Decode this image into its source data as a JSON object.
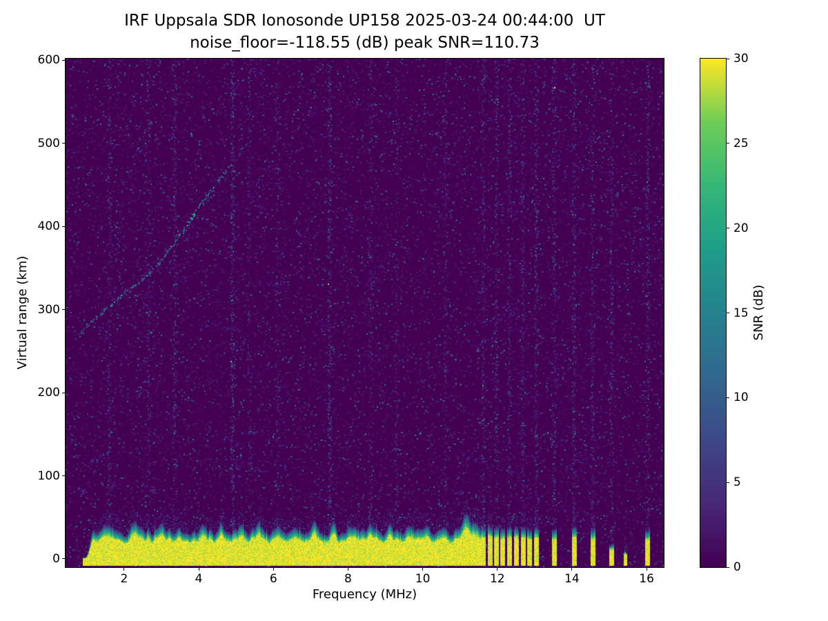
{
  "chart_data": {
    "type": "heatmap",
    "title": "IRF Uppsala SDR Ionosonde UP158 2025-03-24 00:44:00  UT",
    "subtitle": "noise_floor=-118.55 (dB) peak SNR=110.73",
    "noise_floor_db": -118.55,
    "peak_snr_db": 110.73,
    "xlabel": "Frequency (MHz)",
    "ylabel": "Virtual range (km)",
    "colorbar_label": "SNR (dB)",
    "x_ticks": [
      2,
      4,
      6,
      8,
      10,
      12,
      14,
      16
    ],
    "y_ticks": [
      0,
      100,
      200,
      300,
      400,
      500,
      600
    ],
    "colorbar_ticks": [
      0,
      5,
      10,
      15,
      20,
      25,
      30
    ],
    "xlim": [
      0.43,
      16.46
    ],
    "ylim": [
      -10,
      602
    ],
    "clim": [
      0,
      30
    ],
    "grid": false,
    "colormap": "viridis",
    "colormap_stops": [
      "#440154",
      "#482878",
      "#3e4989",
      "#31688e",
      "#26828e",
      "#1f9e89",
      "#35b779",
      "#6ece58",
      "#fde725"
    ],
    "background_snr_db": 0,
    "ground_return": {
      "f_start": 0.9,
      "ramp_end": 1.15,
      "f_end": 11.56,
      "base_top_km": 34,
      "core_fraction": 0.62,
      "bottom_km": -8,
      "jitter_km": 10,
      "bumps": [
        [
          1.55,
          10,
          0.12
        ],
        [
          2.3,
          12,
          0.12
        ],
        [
          3.0,
          10,
          0.12
        ],
        [
          3.45,
          8,
          0.09
        ],
        [
          4.1,
          10,
          0.1
        ],
        [
          4.6,
          8,
          0.08
        ],
        [
          5.1,
          7,
          0.09
        ],
        [
          5.55,
          11,
          0.09
        ],
        [
          6.1,
          7,
          0.09
        ],
        [
          6.55,
          7,
          0.08
        ],
        [
          7.1,
          12,
          0.1
        ],
        [
          7.6,
          9,
          0.08
        ],
        [
          8.1,
          7,
          0.09
        ],
        [
          8.6,
          7,
          0.08
        ],
        [
          9.1,
          9,
          0.09
        ],
        [
          9.6,
          7,
          0.08
        ],
        [
          10.1,
          7,
          0.09
        ],
        [
          10.6,
          8,
          0.08
        ],
        [
          11.15,
          24,
          0.13
        ],
        [
          11.42,
          14,
          0.08
        ]
      ]
    },
    "rf_bars": [
      {
        "f": 11.62,
        "top_km": 40,
        "width_mhz": 0.1
      },
      {
        "f": 11.8,
        "top_km": 42,
        "width_mhz": 0.1
      },
      {
        "f": 11.97,
        "top_km": 40,
        "width_mhz": 0.1
      },
      {
        "f": 12.14,
        "top_km": 38,
        "width_mhz": 0.1
      },
      {
        "f": 12.32,
        "top_km": 41,
        "width_mhz": 0.1
      },
      {
        "f": 12.5,
        "top_km": 39,
        "width_mhz": 0.1
      },
      {
        "f": 12.68,
        "top_km": 41,
        "width_mhz": 0.1
      },
      {
        "f": 12.86,
        "top_km": 38,
        "width_mhz": 0.1
      },
      {
        "f": 13.04,
        "top_km": 40,
        "width_mhz": 0.1
      },
      {
        "f": 13.52,
        "top_km": 38,
        "width_mhz": 0.12
      },
      {
        "f": 14.05,
        "top_km": 40,
        "width_mhz": 0.12
      },
      {
        "f": 14.55,
        "top_km": 38,
        "width_mhz": 0.12
      },
      {
        "f": 15.05,
        "top_km": 18,
        "width_mhz": 0.1
      },
      {
        "f": 15.42,
        "top_km": 9,
        "width_mhz": 0.08
      },
      {
        "f": 16.02,
        "top_km": 38,
        "width_mhz": 0.12
      }
    ],
    "echo_trace": {
      "points": [
        [
          0.82,
          272
        ],
        [
          1.1,
          284
        ],
        [
          1.45,
          298
        ],
        [
          1.8,
          312
        ],
        [
          2.2,
          326
        ],
        [
          2.6,
          341
        ],
        [
          3.0,
          360
        ],
        [
          3.4,
          384
        ],
        [
          3.8,
          410
        ],
        [
          4.2,
          436
        ],
        [
          4.55,
          456
        ],
        [
          4.9,
          478
        ]
      ],
      "knots": [
        [
          1.7,
          7
        ],
        [
          3.85,
          7
        ]
      ],
      "snr_min": 7,
      "snr_max": 15,
      "scatter_prob": 0.3
    },
    "noise": {
      "speckle_count": 24000,
      "speckle_scale_db": 1.7,
      "speckle_max_db": 13,
      "bright_count": 1400,
      "bright_snr_min": 7,
      "bright_snr_max": 16,
      "stripes": [
        {
          "f": 1.6,
          "density": 0.35,
          "snr": 2.5
        },
        {
          "f": 2.65,
          "density": 0.3,
          "snr": 2.5
        },
        {
          "f": 3.35,
          "density": 0.4,
          "snr": 3
        },
        {
          "f": 4.9,
          "density": 0.55,
          "snr": 3.5
        },
        {
          "f": 5.35,
          "density": 0.3,
          "snr": 2.5
        },
        {
          "f": 6.1,
          "density": 0.25,
          "snr": 2.5
        },
        {
          "f": 7.5,
          "density": 0.55,
          "snr": 3.5
        },
        {
          "f": 8.6,
          "density": 0.3,
          "snr": 2.5
        },
        {
          "f": 9.3,
          "density": 0.25,
          "snr": 2.5
        },
        {
          "f": 10.6,
          "density": 0.3,
          "snr": 2.5
        },
        {
          "f": 11.62,
          "density": 0.4,
          "snr": 3
        },
        {
          "f": 11.97,
          "density": 0.35,
          "snr": 3
        },
        {
          "f": 12.32,
          "density": 0.4,
          "snr": 3
        },
        {
          "f": 12.68,
          "density": 0.35,
          "snr": 3
        },
        {
          "f": 13.04,
          "density": 0.4,
          "snr": 3
        },
        {
          "f": 13.52,
          "density": 0.4,
          "snr": 3
        },
        {
          "f": 14.05,
          "density": 0.45,
          "snr": 3
        },
        {
          "f": 14.55,
          "density": 0.4,
          "snr": 3
        },
        {
          "f": 15.05,
          "density": 0.35,
          "snr": 3
        },
        {
          "f": 16.02,
          "density": 0.4,
          "snr": 3
        }
      ]
    }
  }
}
